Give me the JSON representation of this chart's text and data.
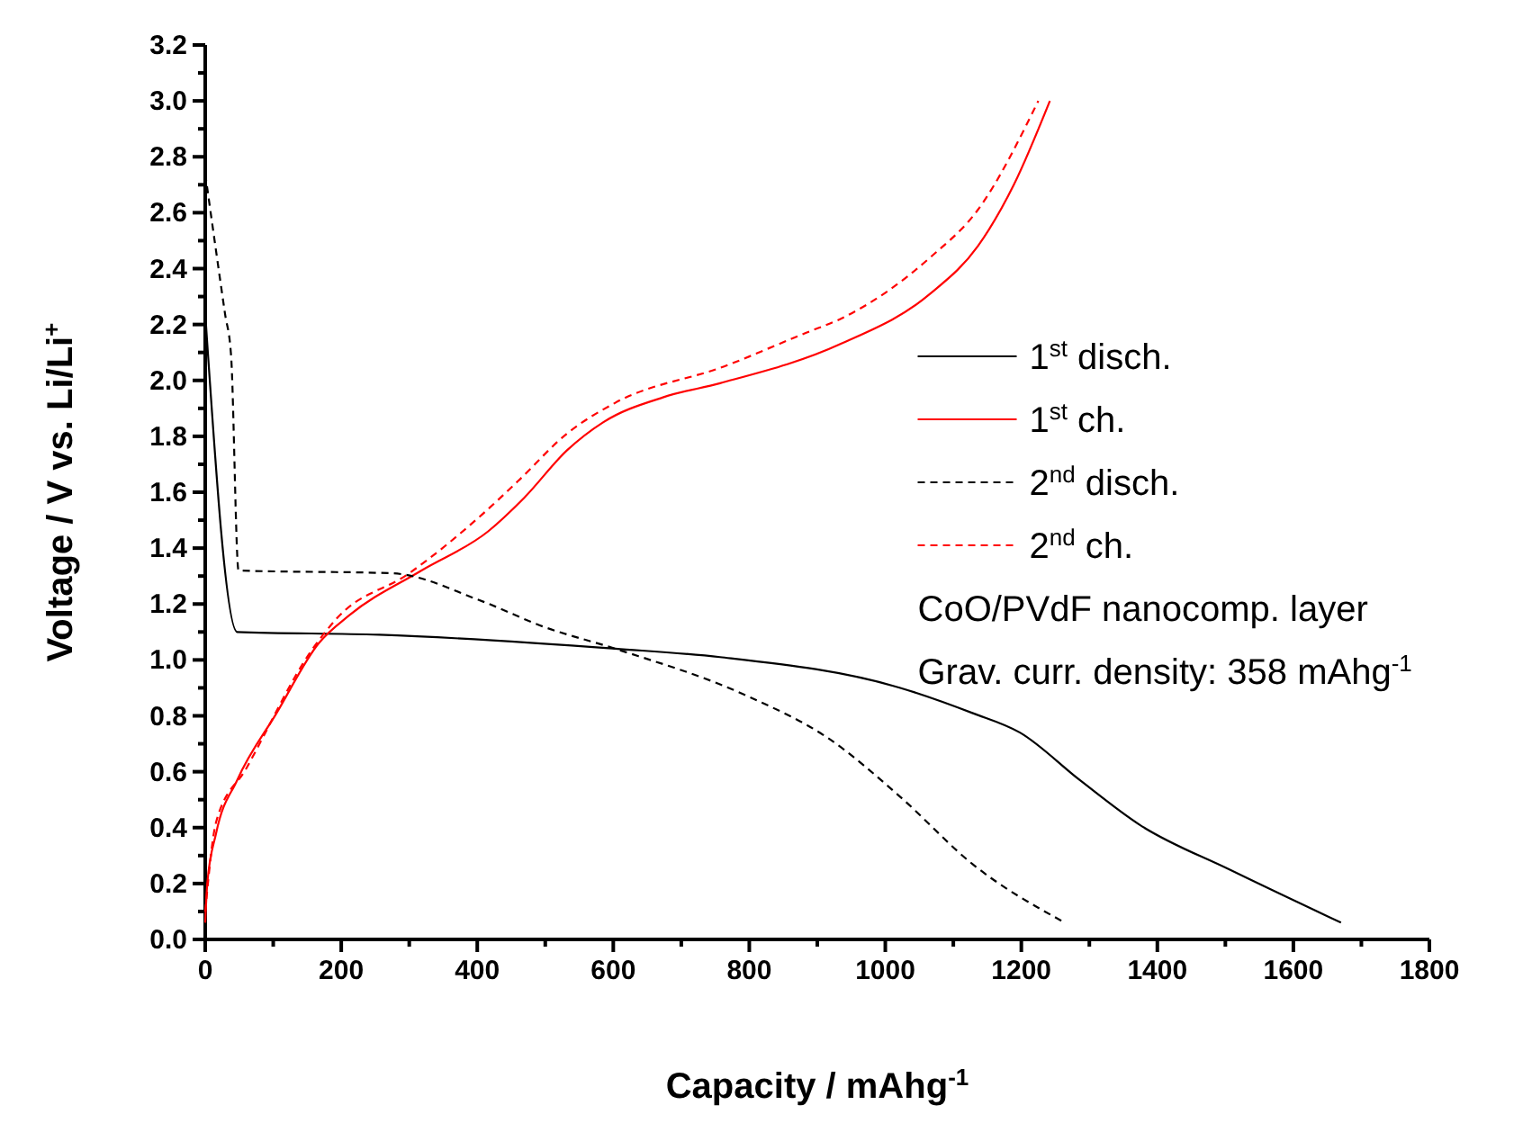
{
  "chart_data": {
    "type": "line",
    "xlabel": "Capacity / mAhg$^{-1}$",
    "ylabel": "Voltage / V vs. Li/Li$^{+}$",
    "xlim": [
      0,
      1800
    ],
    "ylim": [
      0,
      3.2
    ],
    "xticks": [
      0,
      {
        "value": 100,
        "label": null
      },
      200,
      {
        "value": 300,
        "label": null
      },
      400,
      {
        "value": 500,
        "label": null
      },
      600,
      {
        "value": 700,
        "label": null
      },
      800,
      {
        "value": 900,
        "label": null
      },
      1000,
      {
        "value": 1100,
        "label": null
      },
      1200,
      {
        "value": 1300,
        "label": null
      },
      1400,
      {
        "value": 1500,
        "label": null
      },
      1600,
      {
        "value": 1700,
        "label": null
      },
      1800
    ],
    "yticks": [
      {
        "value": 0,
        "label": "0.0"
      },
      {
        "value": 0.1,
        "label": null
      },
      0.2,
      {
        "value": 0.3,
        "label": null
      },
      0.4,
      {
        "value": 0.5,
        "label": null
      },
      0.6,
      {
        "value": 0.7,
        "label": null
      },
      0.8,
      {
        "value": 0.9,
        "label": null
      },
      {
        "value": 1,
        "label": "1.0"
      },
      {
        "value": 1.1,
        "label": null
      },
      1.2,
      {
        "value": 1.3,
        "label": null
      },
      1.4,
      {
        "value": 1.5,
        "label": null
      },
      1.6,
      {
        "value": 1.7,
        "label": null
      },
      1.8,
      {
        "value": 1.9,
        "label": null
      },
      {
        "value": 2,
        "label": "2.0"
      },
      {
        "value": 2.1,
        "label": null
      },
      2.2,
      {
        "value": 2.3,
        "label": null
      },
      2.4,
      {
        "value": 2.5,
        "label": null
      },
      2.6,
      {
        "value": 2.7,
        "label": null
      },
      2.8,
      {
        "value": 2.9,
        "label": null
      },
      {
        "value": 3,
        "label": "3.0"
      },
      {
        "value": 3.1,
        "label": null
      },
      3.2
    ],
    "grid": false,
    "legend": "right",
    "marker": "none",
    "series": [
      {
        "name": "1$^{st}$ disch.",
        "color": "#000000",
        "line_style": "solid",
        "x": [
          0,
          47,
          256,
          603,
          757,
          1022,
          1128,
          1198,
          1286,
          1374,
          1506,
          1670
        ],
        "values": [
          2.24,
          1.1,
          1.09,
          1.04,
          1.01,
          0.9,
          0.81,
          0.74,
          0.57,
          0.41,
          0.25,
          0.06
        ]
      },
      {
        "name": "1$^{st}$ ch.",
        "color": "#ff0000",
        "line_style": "solid",
        "x": [
          0,
          3,
          16,
          47,
          105,
          167,
          212,
          318,
          416,
          469,
          532,
          585,
          674,
          757,
          934,
          1066,
          1136,
          1189,
          1242
        ],
        "values": [
          0.06,
          0.2,
          0.38,
          0.57,
          0.81,
          1.06,
          1.16,
          1.32,
          1.46,
          1.58,
          1.75,
          1.85,
          1.94,
          1.99,
          2.13,
          2.31,
          2.48,
          2.7,
          3.0
        ]
      },
      {
        "name": "2$^{nd}$ disch.",
        "color": "#000000",
        "line_style": "dashed",
        "x": [
          0,
          29,
          38,
          49,
          274,
          407,
          496,
          603,
          798,
          916,
          1022,
          1128,
          1264
        ],
        "values": [
          2.74,
          2.24,
          2.09,
          1.32,
          1.31,
          1.21,
          1.12,
          1.04,
          0.87,
          0.72,
          0.51,
          0.27,
          0.06
        ]
      },
      {
        "name": "2$^{nd}$ ch.",
        "color": "#ff0000",
        "line_style": "dashed",
        "x": [
          0,
          16,
          60,
          158,
          194,
          300,
          407,
          460,
          532,
          603,
          763,
          883,
          934,
          1066,
          1136,
          1225
        ],
        "values": [
          0.1,
          0.42,
          0.61,
          1.04,
          1.15,
          1.31,
          1.52,
          1.64,
          1.81,
          1.92,
          2.05,
          2.17,
          2.22,
          2.44,
          2.61,
          3.0
        ]
      }
    ],
    "annotations": [
      "CoO/PVdF nanocomp. layer",
      "Grav. curr. density: 358 mAhg$^{-1}$"
    ]
  }
}
